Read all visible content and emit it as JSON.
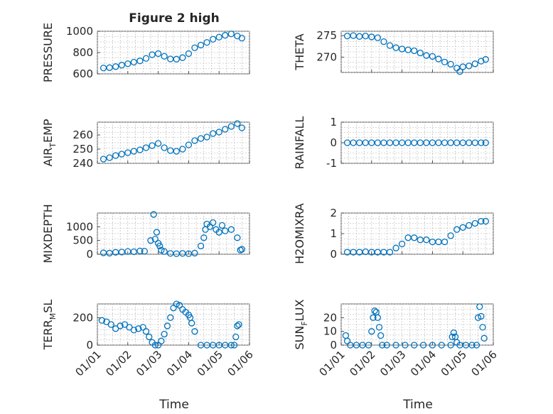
{
  "figure": {
    "title": "Figure 2 high",
    "xlabel": "Time",
    "marker_color": "#0072BD",
    "x_ticks": [
      "01/01",
      "01/02",
      "01/03",
      "01/04",
      "01/05",
      "01/06"
    ]
  },
  "chart_data": [
    {
      "type": "scatter",
      "name": "PRESSURE",
      "ylabel": "PRESSURE",
      "ylim": [
        600,
        1000
      ],
      "yticks": [
        600,
        800,
        1000
      ],
      "xlim": [
        0,
        5
      ],
      "grid": "on",
      "x": [
        0.2,
        0.4,
        0.6,
        0.8,
        1.0,
        1.2,
        1.4,
        1.6,
        1.8,
        2.0,
        2.2,
        2.4,
        2.6,
        2.8,
        3.0,
        3.2,
        3.4,
        3.6,
        3.8,
        4.0,
        4.2,
        4.4,
        4.6,
        4.75
      ],
      "y": [
        655,
        658,
        668,
        682,
        695,
        710,
        722,
        745,
        780,
        790,
        765,
        740,
        738,
        752,
        790,
        845,
        870,
        895,
        925,
        945,
        962,
        975,
        955,
        935
      ]
    },
    {
      "type": "scatter",
      "name": "THETA",
      "ylabel": "THETA",
      "ylim": [
        266.5,
        276
      ],
      "yticks": [
        270,
        275
      ],
      "xlim": [
        0,
        5
      ],
      "grid": "on",
      "x": [
        0.2,
        0.4,
        0.6,
        0.8,
        1.0,
        1.2,
        1.4,
        1.6,
        1.8,
        2.0,
        2.2,
        2.4,
        2.6,
        2.8,
        3.0,
        3.2,
        3.4,
        3.6,
        3.8,
        3.9,
        4.0,
        4.2,
        4.4,
        4.6,
        4.75
      ],
      "y": [
        274.9,
        275.0,
        274.8,
        274.9,
        274.7,
        274.5,
        273.6,
        272.7,
        272.2,
        271.9,
        271.7,
        271.5,
        271.0,
        270.4,
        270.2,
        269.6,
        268.9,
        268.4,
        267.5,
        266.7,
        267.8,
        268.0,
        268.5,
        269.1,
        269.5
      ]
    },
    {
      "type": "scatter",
      "name": "AIR_TEMP",
      "ylabel": "AIR_TEMP",
      "ylim": [
        240,
        269
      ],
      "yticks": [
        240,
        250,
        260
      ],
      "xlim": [
        0,
        5
      ],
      "grid": "on",
      "x": [
        0.2,
        0.4,
        0.6,
        0.8,
        1.0,
        1.2,
        1.4,
        1.6,
        1.8,
        2.0,
        2.2,
        2.4,
        2.6,
        2.8,
        3.0,
        3.2,
        3.4,
        3.6,
        3.8,
        4.0,
        4.2,
        4.4,
        4.6,
        4.75
      ],
      "y": [
        243,
        244,
        245.5,
        246.5,
        247.5,
        248.5,
        249.5,
        251,
        252.5,
        254,
        251,
        249,
        248.5,
        250,
        253,
        256,
        257.5,
        258.5,
        261,
        262,
        264,
        266,
        268,
        265
      ]
    },
    {
      "type": "scatter",
      "name": "RAINFALL",
      "ylabel": "RAINFALL",
      "ylim": [
        -1,
        1
      ],
      "yticks": [
        -1,
        0,
        1
      ],
      "xlim": [
        0,
        5
      ],
      "grid": "on",
      "x": [
        0.2,
        0.4,
        0.6,
        0.8,
        1.0,
        1.2,
        1.4,
        1.6,
        1.8,
        2.0,
        2.2,
        2.4,
        2.6,
        2.8,
        3.0,
        3.2,
        3.4,
        3.6,
        3.8,
        4.0,
        4.2,
        4.4,
        4.6,
        4.75
      ],
      "y": [
        0,
        0,
        0,
        0,
        0,
        0,
        0,
        0,
        0,
        0,
        0,
        0,
        0,
        0,
        0,
        0,
        0,
        0,
        0,
        0,
        0,
        0,
        0,
        0
      ]
    },
    {
      "type": "scatter",
      "name": "MIXDEPTH",
      "ylabel": "MIXDEPTH",
      "ylim": [
        0,
        1500
      ],
      "yticks": [
        0,
        500,
        1000
      ],
      "xlim": [
        0,
        5
      ],
      "grid": "on",
      "x": [
        0.2,
        0.4,
        0.6,
        0.8,
        1.0,
        1.2,
        1.4,
        1.55,
        1.75,
        1.85,
        1.9,
        1.95,
        2.0,
        2.05,
        2.1,
        2.2,
        2.4,
        2.6,
        2.8,
        3.0,
        3.2,
        3.4,
        3.5,
        3.55,
        3.6,
        3.7,
        3.8,
        3.9,
        4.0,
        4.1,
        4.2,
        4.4,
        4.6,
        4.7,
        4.75
      ],
      "y": [
        50,
        40,
        70,
        80,
        100,
        90,
        120,
        110,
        500,
        1450,
        550,
        800,
        400,
        300,
        150,
        100,
        30,
        20,
        30,
        20,
        40,
        300,
        600,
        900,
        1100,
        1000,
        1150,
        900,
        800,
        1050,
        850,
        900,
        600,
        150,
        180
      ]
    },
    {
      "type": "scatter",
      "name": "H2OMIXRA",
      "ylabel": "H2OMIXRA",
      "ylim": [
        0,
        2
      ],
      "yticks": [
        0,
        1,
        2
      ],
      "xlim": [
        0,
        5
      ],
      "grid": "on",
      "x": [
        0.2,
        0.4,
        0.6,
        0.8,
        1.0,
        1.2,
        1.4,
        1.6,
        1.8,
        2.0,
        2.2,
        2.4,
        2.6,
        2.8,
        3.0,
        3.2,
        3.4,
        3.6,
        3.8,
        4.0,
        4.2,
        4.4,
        4.6,
        4.75
      ],
      "y": [
        0.1,
        0.1,
        0.1,
        0.12,
        0.1,
        0.1,
        0.1,
        0.1,
        0.3,
        0.5,
        0.8,
        0.8,
        0.7,
        0.7,
        0.6,
        0.6,
        0.6,
        0.9,
        1.2,
        1.3,
        1.4,
        1.5,
        1.6,
        1.6
      ]
    },
    {
      "type": "scatter",
      "name": "TERR_MSL",
      "ylabel": "TERR_MSL",
      "ylim": [
        0,
        300
      ],
      "yticks": [
        0,
        200
      ],
      "xlim": [
        0,
        5
      ],
      "grid": "on",
      "x": [
        0.15,
        0.3,
        0.45,
        0.6,
        0.75,
        0.9,
        1.05,
        1.2,
        1.35,
        1.5,
        1.6,
        1.7,
        1.8,
        1.9,
        2.0,
        2.1,
        2.2,
        2.3,
        2.4,
        2.5,
        2.6,
        2.7,
        2.8,
        2.9,
        3.0,
        3.05,
        3.1,
        3.2,
        3.4,
        3.6,
        3.8,
        4.0,
        4.2,
        4.4,
        4.5,
        4.55,
        4.6,
        4.65
      ],
      "y": [
        180,
        170,
        150,
        120,
        140,
        150,
        130,
        110,
        120,
        130,
        100,
        60,
        20,
        0,
        0,
        30,
        80,
        140,
        200,
        270,
        300,
        290,
        260,
        240,
        220,
        200,
        160,
        100,
        0,
        0,
        0,
        0,
        0,
        0,
        0,
        60,
        140,
        150
      ]
    },
    {
      "type": "scatter",
      "name": "SUN_FLUX",
      "ylabel": "SUN_FLUX",
      "ylim": [
        0,
        30
      ],
      "yticks": [
        0,
        10,
        20
      ],
      "xlim": [
        0,
        5
      ],
      "grid": "on",
      "x": [
        0.15,
        0.2,
        0.3,
        0.5,
        0.7,
        0.9,
        1.0,
        1.05,
        1.1,
        1.15,
        1.2,
        1.25,
        1.3,
        1.35,
        1.5,
        1.8,
        2.1,
        2.4,
        2.7,
        3.0,
        3.3,
        3.6,
        3.65,
        3.7,
        3.75,
        3.8,
        3.9,
        4.1,
        4.3,
        4.45,
        4.5,
        4.55,
        4.6,
        4.65,
        4.7
      ],
      "y": [
        7,
        3,
        0,
        0,
        0,
        0,
        10,
        20,
        25,
        24,
        20,
        13,
        7,
        0,
        0,
        0,
        0,
        0,
        0,
        0,
        0,
        0,
        6,
        9,
        6,
        2,
        0,
        0,
        0,
        0,
        20,
        28,
        21,
        13,
        5
      ]
    }
  ]
}
